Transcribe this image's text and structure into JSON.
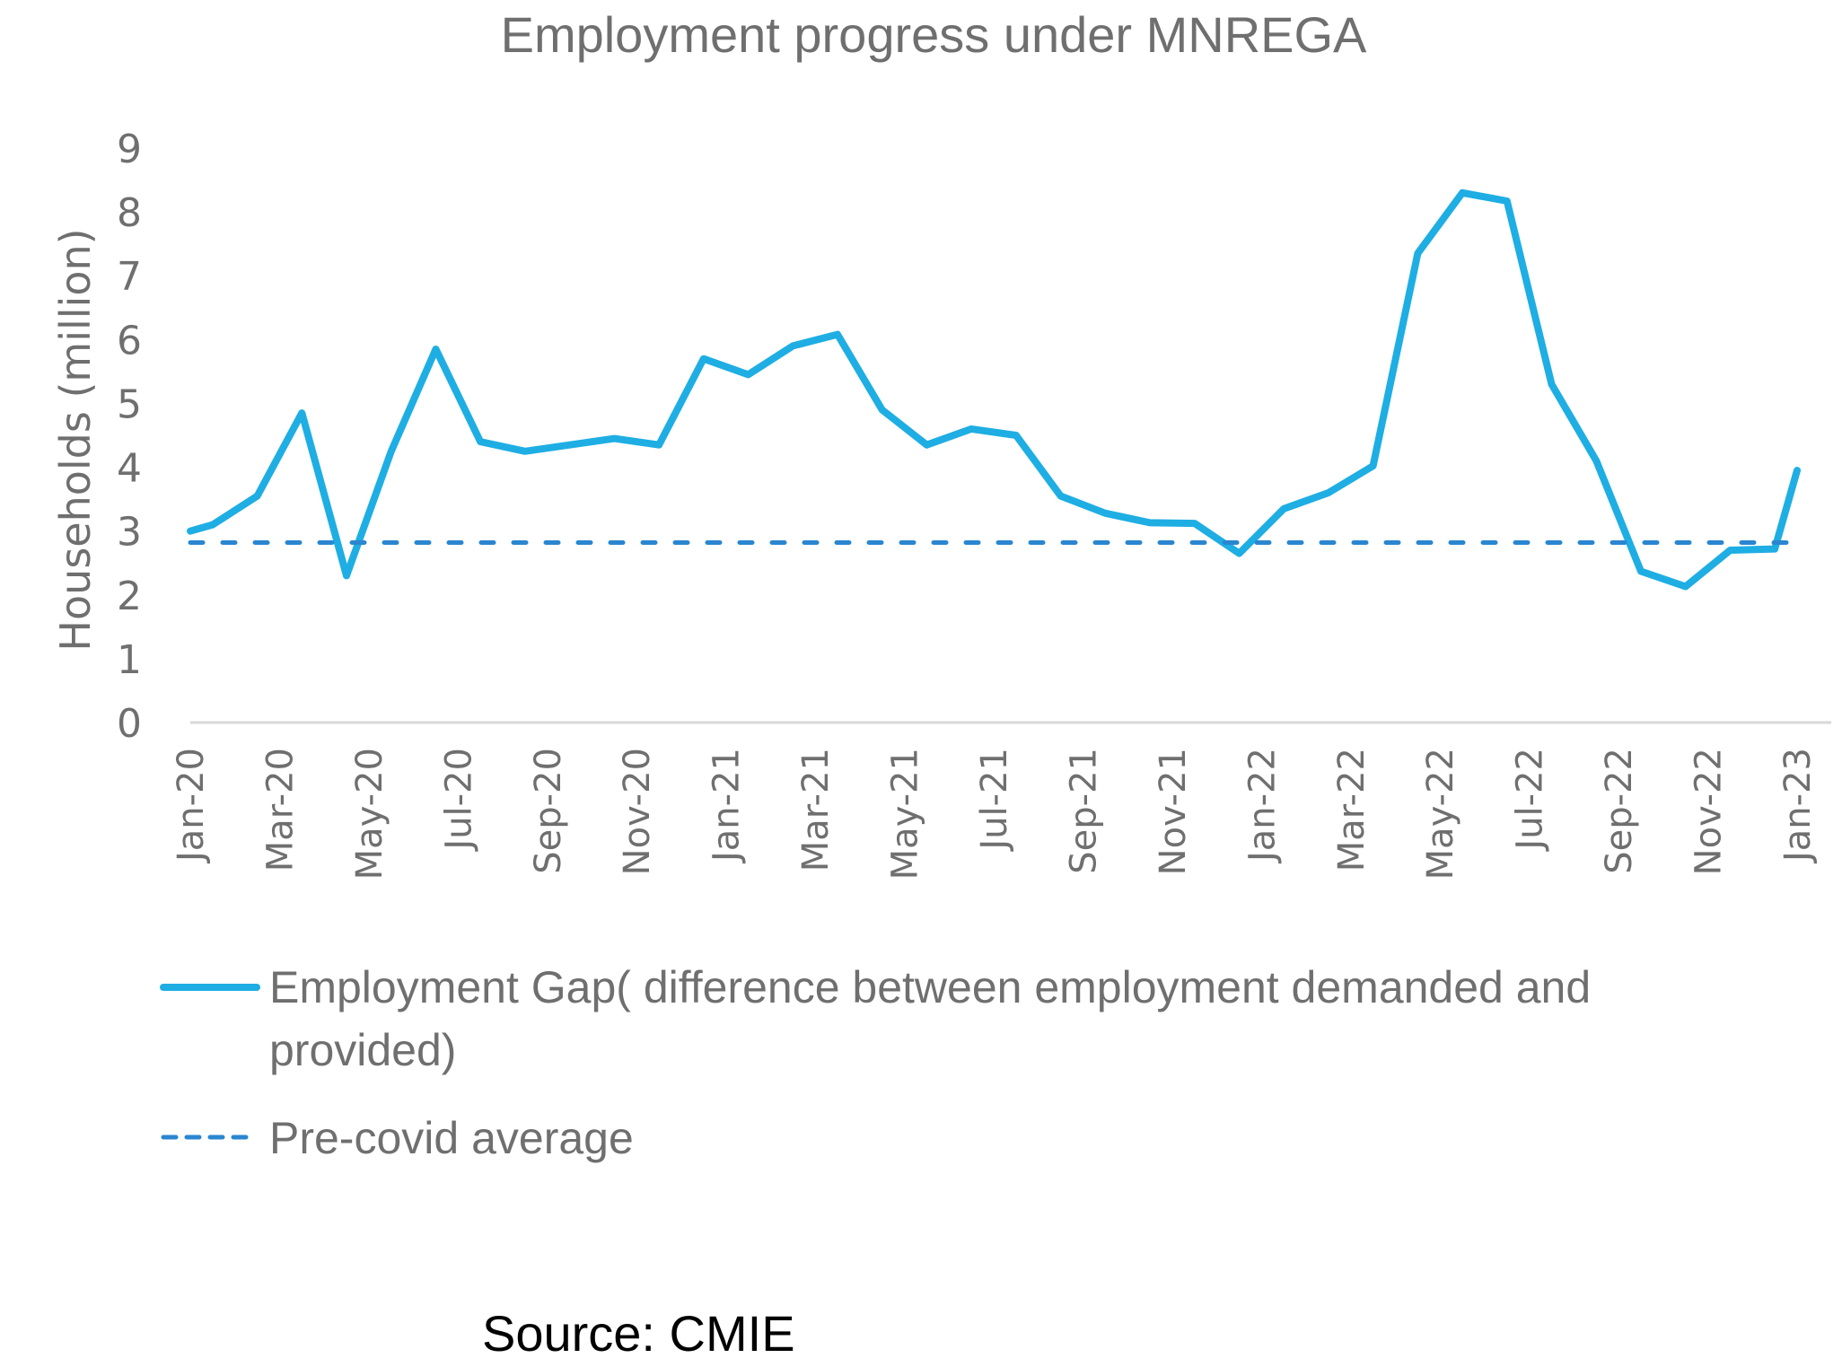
{
  "chart_data": {
    "type": "line",
    "title": "Employment progress under MNREGA",
    "xlabel": "",
    "ylabel": "Households (million)",
    "ylim": [
      0,
      9
    ],
    "yticks": [
      "0",
      "1",
      "2",
      "3",
      "4",
      "5",
      "6",
      "7",
      "8",
      "9"
    ],
    "xticks": [
      "Jan-20",
      "Mar-20",
      "May-20",
      "Jul-20",
      "Sep-20",
      "Nov-20",
      "Jan-21",
      "Mar-21",
      "May-21",
      "Jul-21",
      "Sep-21",
      "Nov-21",
      "Jan-22",
      "Mar-22",
      "May-22",
      "Jul-22",
      "Sep-22",
      "Nov-22",
      "Jan-23"
    ],
    "x_range_months": [
      0,
      36
    ],
    "grid": false,
    "legend_position": "bottom-left",
    "series": [
      {
        "name": "Employment Gap( difference between employment demanded and provided)",
        "color": "#1eaee3",
        "style": "solid",
        "x_month_index": [
          0,
          0.5,
          1.5,
          2.5,
          3.5,
          4.5,
          5.5,
          6.5,
          7.5,
          8.5,
          9.5,
          10.5,
          11.5,
          12.5,
          13.5,
          14.5,
          15.5,
          16.5,
          17.5,
          18.5,
          19.5,
          20.5,
          21.5,
          22.5,
          23.5,
          24.5,
          25.5,
          26.5,
          27.5,
          28.5,
          29.5,
          30.5,
          31.5,
          32.5,
          33.5,
          34.5,
          35.5,
          36
        ],
        "values": [
          3.0,
          3.1,
          3.55,
          4.85,
          2.3,
          4.25,
          5.85,
          4.4,
          4.25,
          4.35,
          4.45,
          4.35,
          5.7,
          5.45,
          5.9,
          6.08,
          4.9,
          4.35,
          4.6,
          4.5,
          3.55,
          3.28,
          3.13,
          3.12,
          2.65,
          3.35,
          3.6,
          4.02,
          7.35,
          8.3,
          8.17,
          5.3,
          4.1,
          2.37,
          2.13,
          2.7,
          2.72,
          3.95
        ]
      },
      {
        "name": "Pre-covid average",
        "color": "#2a86d0",
        "style": "dashed",
        "x_month_index": [
          0,
          36
        ],
        "values": [
          2.82,
          2.82
        ]
      }
    ],
    "source": "Source: CMIE"
  },
  "legend": {
    "items": [
      {
        "line1": "Employment Gap( difference between employment demanded and",
        "line2": "provided)"
      },
      {
        "line1": "Pre-covid average"
      }
    ]
  }
}
